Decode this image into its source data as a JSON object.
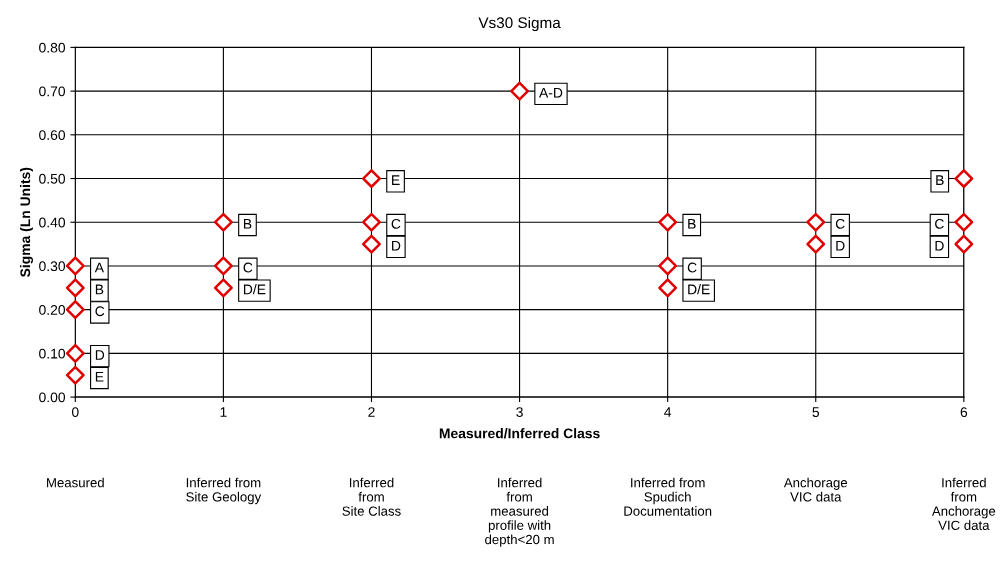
{
  "chart_data": {
    "type": "scatter",
    "title": "Vs30 Sigma",
    "xlabel": "Measured/Inferred Class",
    "ylabel": "Sigma (Ln Units)",
    "x": [
      0,
      0,
      0,
      0,
      0,
      1,
      1,
      1,
      2,
      2,
      2,
      3,
      4,
      4,
      4,
      5,
      5,
      6,
      6,
      6
    ],
    "series": [
      {
        "color": "#e00000",
        "values": [
          0.3,
          0.25,
          0.2,
          0.1,
          0.05,
          0.4,
          0.3,
          0.25,
          0.5,
          0.4,
          0.35,
          0.7,
          0.4,
          0.3,
          0.25,
          0.4,
          0.35,
          0.5,
          0.4,
          0.35
        ]
      }
    ],
    "marker": "diamond",
    "grid": true,
    "xlim": [
      0,
      6
    ],
    "xticks": [
      0,
      1,
      2,
      3,
      4,
      5,
      6
    ],
    "ylim": [
      0,
      0.8
    ],
    "yticks": [
      {
        "value": 0,
        "label": "0.00"
      },
      {
        "value": 0.1,
        "label": "0.10"
      },
      {
        "value": 0.2,
        "label": "0.20"
      },
      {
        "value": 0.3,
        "label": "0.30"
      },
      {
        "value": 0.4,
        "label": "0.40"
      },
      {
        "value": 0.5,
        "label": "0.50"
      },
      {
        "value": 0.6,
        "label": "0.60"
      },
      {
        "value": 0.7,
        "label": "0.70"
      },
      {
        "value": 0.8,
        "label": "0.80"
      }
    ],
    "annotations": [
      {
        "text": "A",
        "x": 0,
        "y": 0.3
      },
      {
        "text": "B",
        "x": 0,
        "y": 0.25
      },
      {
        "text": "C",
        "x": 0,
        "y": 0.2
      },
      {
        "text": "D",
        "x": 0,
        "y": 0.1
      },
      {
        "text": "E",
        "x": 0,
        "y": 0.05
      },
      {
        "text": "B",
        "x": 1,
        "y": 0.4
      },
      {
        "text": "C",
        "x": 1,
        "y": 0.3
      },
      {
        "text": "D/E",
        "x": 1,
        "y": 0.25
      },
      {
        "text": "E",
        "x": 2,
        "y": 0.5
      },
      {
        "text": "C",
        "x": 2,
        "y": 0.4
      },
      {
        "text": "D",
        "x": 2,
        "y": 0.35
      },
      {
        "text": "A-D",
        "x": 3,
        "y": 0.7
      },
      {
        "text": "B",
        "x": 4,
        "y": 0.4
      },
      {
        "text": "C",
        "x": 4,
        "y": 0.3
      },
      {
        "text": "D/E",
        "x": 4,
        "y": 0.25
      },
      {
        "text": "C",
        "x": 5,
        "y": 0.4
      },
      {
        "text": "D",
        "x": 5,
        "y": 0.35
      },
      {
        "text": "B",
        "x": 6,
        "y": 0.5
      },
      {
        "text": "C",
        "x": 6,
        "y": 0.4
      },
      {
        "text": "D",
        "x": 6,
        "y": 0.35
      },
      "Measured",
      "Inferred from\nSite Geology",
      "Inferred\nfrom\nSite Class",
      "Inferred\nfrom\nmeasured\nprofile with\ndepth<20 m",
      "Inferred from\nSpudich\nDocumentation",
      "Anchorage\nVIC data",
      "Inferred\nfrom\nAnchorage\nVIC data"
    ]
  }
}
